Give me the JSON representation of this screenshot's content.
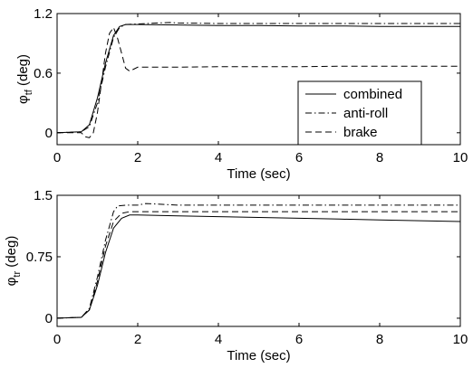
{
  "chart_data": [
    {
      "type": "line",
      "title": "",
      "xlabel": "Time (sec)",
      "ylabel": {
        "symbol": "φ",
        "subscript": "tf",
        "unit": "(deg)"
      },
      "xlim": [
        0,
        10
      ],
      "ylim": [
        -0.12,
        1.2
      ],
      "x_ticks": [
        0,
        2,
        4,
        6,
        8,
        10
      ],
      "x_tick_labels": [
        "0",
        "2",
        "4",
        "6",
        "8",
        "10"
      ],
      "y_ticks": [
        0,
        0.6,
        1.2
      ],
      "y_tick_labels": [
        "0",
        "0.6",
        "1.2"
      ],
      "grid": false,
      "legend": {
        "placement": "bottom-right"
      },
      "series": [
        {
          "name": "combined",
          "style": "solid",
          "x": [
            0,
            0.6,
            0.8,
            1.0,
            1.2,
            1.4,
            1.55,
            1.7,
            2,
            3,
            4,
            5,
            6,
            7,
            8,
            9,
            10
          ],
          "y": [
            0,
            0.01,
            0.08,
            0.35,
            0.7,
            0.98,
            1.07,
            1.09,
            1.09,
            1.085,
            1.08,
            1.08,
            1.075,
            1.075,
            1.07,
            1.07,
            1.07
          ]
        },
        {
          "name": "anti-roll",
          "style": "dashdot",
          "x": [
            0,
            0.6,
            0.8,
            1.0,
            1.2,
            1.4,
            1.55,
            1.7,
            2,
            2.5,
            2.8,
            3,
            4,
            5,
            6,
            7,
            8,
            9,
            10
          ],
          "y": [
            0,
            0.01,
            0.06,
            0.3,
            0.66,
            0.96,
            1.06,
            1.09,
            1.095,
            1.105,
            1.11,
            1.105,
            1.1,
            1.1,
            1.1,
            1.1,
            1.1,
            1.1,
            1.1
          ]
        },
        {
          "name": "brake",
          "style": "dashed",
          "x": [
            0,
            0.6,
            0.7,
            0.8,
            0.9,
            1.0,
            1.1,
            1.2,
            1.3,
            1.4,
            1.5,
            1.6,
            1.7,
            1.8,
            2,
            3,
            4,
            5,
            6,
            7,
            8,
            9,
            10
          ],
          "y": [
            0,
            0,
            -0.04,
            -0.05,
            0.0,
            0.2,
            0.5,
            0.8,
            1.0,
            1.06,
            0.95,
            0.8,
            0.65,
            0.62,
            0.66,
            0.66,
            0.665,
            0.665,
            0.665,
            0.67,
            0.67,
            0.67,
            0.67
          ]
        }
      ]
    },
    {
      "type": "line",
      "title": "",
      "xlabel": "Time (sec)",
      "ylabel": {
        "symbol": "φ",
        "subscript": "tr",
        "unit": "(deg)"
      },
      "xlim": [
        0,
        10
      ],
      "ylim": [
        -0.1,
        1.5
      ],
      "x_ticks": [
        0,
        2,
        4,
        6,
        8,
        10
      ],
      "x_tick_labels": [
        "0",
        "2",
        "4",
        "6",
        "8",
        "10"
      ],
      "y_ticks": [
        0,
        0.75,
        1.5
      ],
      "y_tick_labels": [
        "0",
        "0.75",
        "1.5"
      ],
      "grid": false,
      "series": [
        {
          "name": "combined",
          "style": "solid",
          "x": [
            0,
            0.6,
            0.8,
            1.0,
            1.2,
            1.4,
            1.6,
            1.8,
            2,
            3,
            4,
            5,
            6,
            7,
            8,
            9,
            10
          ],
          "y": [
            0,
            0.01,
            0.1,
            0.4,
            0.8,
            1.1,
            1.22,
            1.26,
            1.26,
            1.25,
            1.24,
            1.23,
            1.22,
            1.21,
            1.2,
            1.19,
            1.18
          ]
        },
        {
          "name": "anti-roll",
          "style": "dashdot",
          "x": [
            0,
            0.6,
            0.8,
            1.0,
            1.2,
            1.4,
            1.5,
            1.7,
            2,
            2.2,
            3,
            4,
            5,
            6,
            7,
            8,
            9,
            10
          ],
          "y": [
            0,
            0.01,
            0.12,
            0.5,
            0.95,
            1.3,
            1.37,
            1.38,
            1.38,
            1.4,
            1.38,
            1.38,
            1.38,
            1.38,
            1.38,
            1.38,
            1.38,
            1.38
          ]
        },
        {
          "name": "brake",
          "style": "dashed",
          "x": [
            0,
            0.6,
            0.8,
            1.0,
            1.2,
            1.4,
            1.6,
            1.8,
            2,
            3,
            4,
            5,
            6,
            7,
            8,
            9,
            10
          ],
          "y": [
            0,
            0.01,
            0.1,
            0.45,
            0.88,
            1.18,
            1.28,
            1.3,
            1.3,
            1.3,
            1.3,
            1.3,
            1.3,
            1.3,
            1.3,
            1.3,
            1.3
          ]
        }
      ]
    }
  ]
}
